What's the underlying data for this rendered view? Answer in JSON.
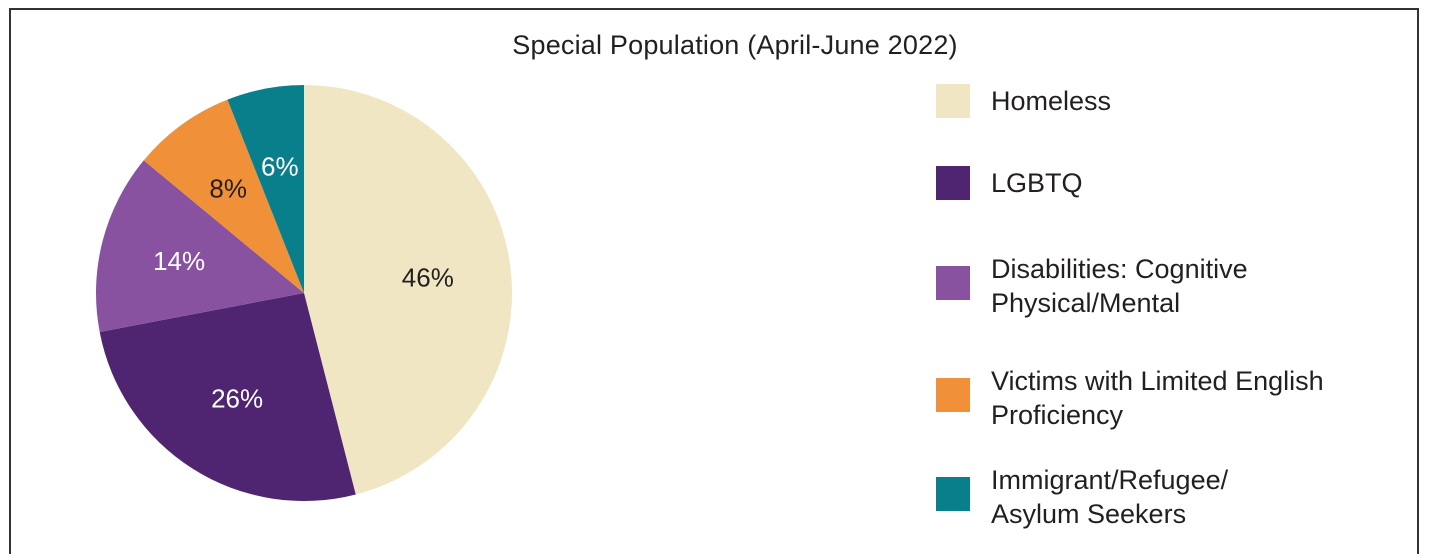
{
  "chart_data": {
    "type": "pie",
    "title": "Special Population (April-June 2022)",
    "slices": [
      {
        "label": "Homeless",
        "value": 46,
        "data_label": "46%",
        "color": "#f1e6c4",
        "label_color": "#231f20"
      },
      {
        "label": "LGBTQ",
        "value": 26,
        "data_label": "26%",
        "color": "#4f2571",
        "label_color": "#ffffff"
      },
      {
        "label": "Disabilities: Cognitive Physical/Mental",
        "value": 14,
        "data_label": "14%",
        "color": "#8952a1",
        "label_color": "#ffffff"
      },
      {
        "label": "Victims with Limited English Proficiency",
        "value": 8,
        "data_label": "8%",
        "color": "#f0913a",
        "label_color": "#231f20"
      },
      {
        "label": "Immigrant/Refugee/ Asylum Seekers",
        "value": 6,
        "data_label": "6%",
        "color": "#0a7f8c",
        "label_color": "#ffffff"
      }
    ],
    "legend_position": "right",
    "legend": [
      {
        "line1": "Homeless",
        "line2": ""
      },
      {
        "line1": "LGBTQ",
        "line2": ""
      },
      {
        "line1": "Disabilities: Cognitive",
        "line2": "Physical/Mental"
      },
      {
        "line1": "Victims with Limited English",
        "line2": "Proficiency"
      },
      {
        "line1": "Immigrant/Refugee/",
        "line2": "Asylum Seekers"
      }
    ]
  }
}
